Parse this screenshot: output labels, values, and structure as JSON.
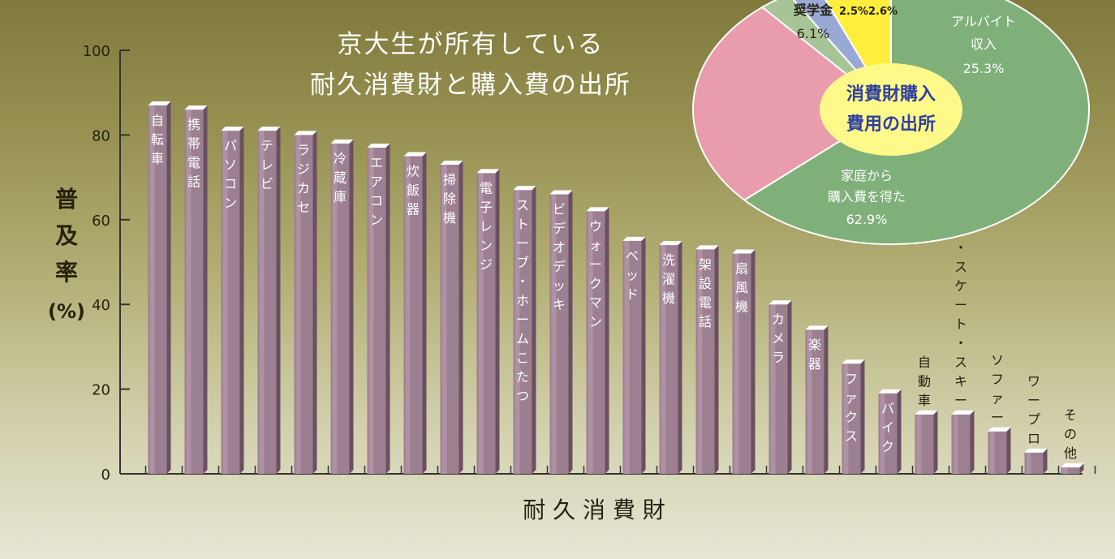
{
  "chart_data": [
    {
      "type": "bar",
      "title_lines": [
        "京大生が所有している",
        "耐久消費財と購入費の出所"
      ],
      "xlabel": "耐 久 消 費 財",
      "ylabel_chars": [
        "普",
        "及",
        "率",
        "(%)"
      ],
      "ylim": [
        0,
        100
      ],
      "yticks": [
        "0",
        "20",
        "40",
        "60",
        "80",
        "100"
      ],
      "grid": false,
      "categories": [
        "自転車",
        "携帯電話",
        "パソコン",
        "テレビ",
        "ラジカセ",
        "冷蔵庫",
        "エアコン",
        "炊飯器",
        "掃除機",
        "電子レンジ",
        "ストーブ・ホームこたつ",
        "ビデオデッキ",
        "ウォークマン",
        "ベッド",
        "洗濯機",
        "架設電話",
        "扇風機",
        "カメラ",
        "楽器",
        "ファクス",
        "バイク",
        "自動車",
        "スノーボード・スケート・スキー",
        "ソファー",
        "ワープロ",
        "その他"
      ],
      "values": [
        87,
        86,
        81,
        81,
        80,
        78,
        77,
        75,
        73,
        71,
        67,
        66,
        62,
        55,
        54,
        53,
        52,
        40,
        34,
        26,
        19,
        14,
        14,
        10,
        5,
        1.5
      ]
    },
    {
      "type": "pie",
      "center_label": [
        "消費財購入",
        "費用の出所"
      ],
      "slices": [
        {
          "label": "家庭から購入費を得た",
          "value_label": "62.9%",
          "value": 62.9,
          "color": "#7fb07a"
        },
        {
          "label": "アルバイト収入",
          "value_label": "25.3%",
          "value": 25.3,
          "color": "#e99cab"
        },
        {
          "label": "",
          "value_label": "2.6%",
          "value": 2.6,
          "color": "#a7c497"
        },
        {
          "label": "",
          "value_label": "2.5%",
          "value": 2.5,
          "color": "#9aa8d6"
        },
        {
          "label": "奨学金",
          "value_label": "6.1%",
          "value": 6.1,
          "color": "#ffef3c"
        }
      ]
    }
  ]
}
